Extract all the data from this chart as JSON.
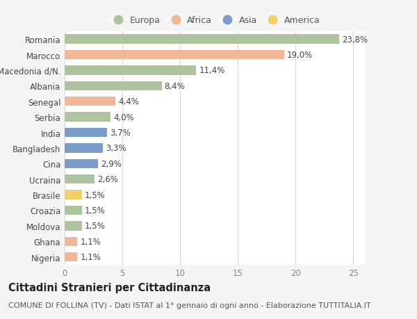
{
  "countries": [
    "Romania",
    "Marocco",
    "Macedonia d/N.",
    "Albania",
    "Senegal",
    "Serbia",
    "India",
    "Bangladesh",
    "Cina",
    "Ucraina",
    "Brasile",
    "Croazia",
    "Moldova",
    "Ghana",
    "Nigeria"
  ],
  "values": [
    23.8,
    19.0,
    11.4,
    8.4,
    4.4,
    4.0,
    3.7,
    3.3,
    2.9,
    2.6,
    1.5,
    1.5,
    1.5,
    1.1,
    1.1
  ],
  "labels": [
    "23,8%",
    "19,0%",
    "11,4%",
    "8,4%",
    "4,4%",
    "4,0%",
    "3,7%",
    "3,3%",
    "2,9%",
    "2,6%",
    "1,5%",
    "1,5%",
    "1,5%",
    "1,1%",
    "1,1%"
  ],
  "continents": [
    "Europa",
    "Africa",
    "Europa",
    "Europa",
    "Africa",
    "Europa",
    "Asia",
    "Asia",
    "Asia",
    "Europa",
    "America",
    "Europa",
    "Europa",
    "Africa",
    "Africa"
  ],
  "colors": {
    "Europa": "#adc49e",
    "Africa": "#f0b896",
    "Asia": "#7b9cc8",
    "America": "#f0d068"
  },
  "legend_order": [
    "Europa",
    "Africa",
    "Asia",
    "America"
  ],
  "xlim": [
    0,
    26
  ],
  "xticks": [
    0,
    5,
    10,
    15,
    20,
    25
  ],
  "title": "Cittadini Stranieri per Cittadinanza",
  "subtitle": "COMUNE DI FOLLINA (TV) - Dati ISTAT al 1° gennaio di ogni anno - Elaborazione TUTTITALIA.IT",
  "background_color": "#f5f5f5",
  "plot_background": "#ffffff",
  "grid_color": "#d8d8d8",
  "bar_height": 0.6,
  "label_fontsize": 8.5,
  "tick_fontsize": 8.5,
  "title_fontsize": 10.5,
  "subtitle_fontsize": 8.0,
  "legend_fontsize": 9
}
